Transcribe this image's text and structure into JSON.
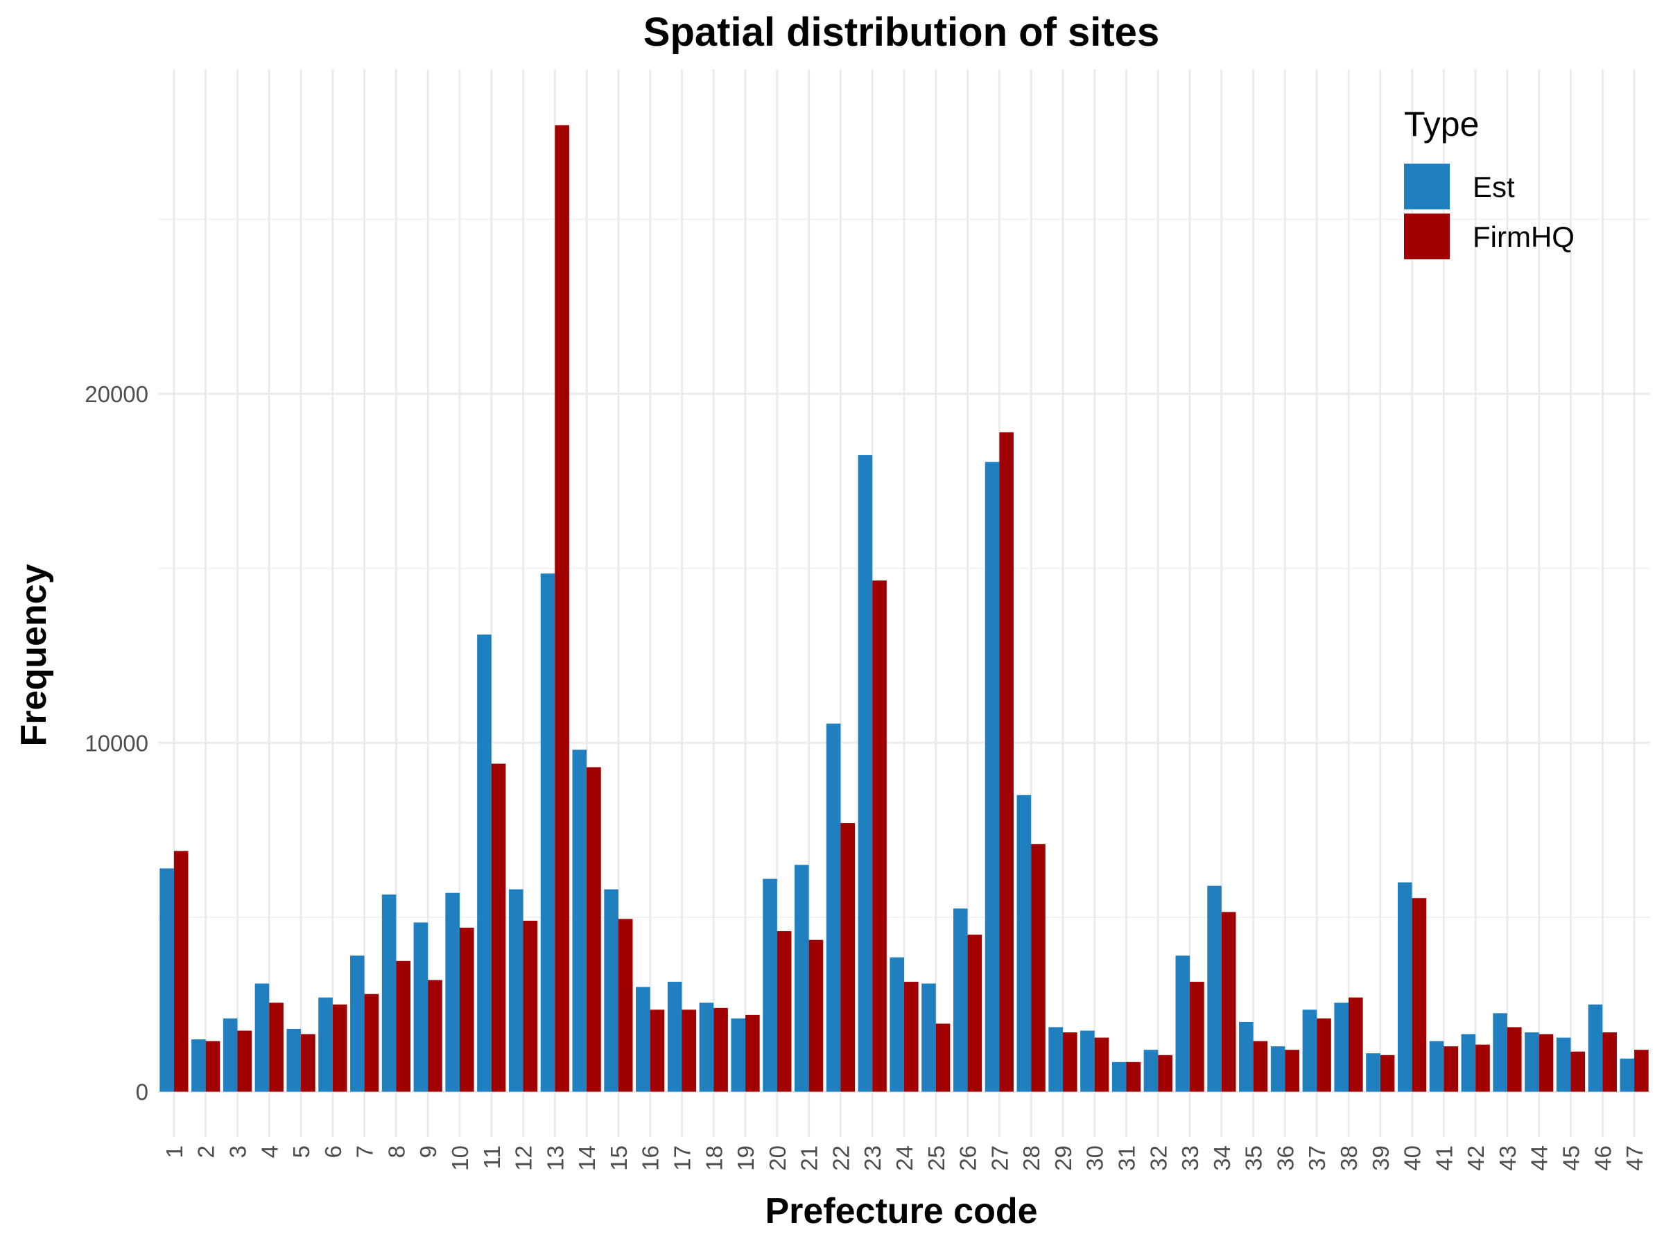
{
  "chart_data": {
    "type": "bar",
    "title": "Spatial distribution of sites",
    "xlabel": "Prefecture code",
    "ylabel": "Frequency",
    "categories": [
      "1",
      "2",
      "3",
      "4",
      "5",
      "6",
      "7",
      "8",
      "9",
      "10",
      "11",
      "12",
      "13",
      "14",
      "15",
      "16",
      "17",
      "18",
      "19",
      "20",
      "21",
      "22",
      "23",
      "24",
      "25",
      "26",
      "27",
      "28",
      "29",
      "30",
      "31",
      "32",
      "33",
      "34",
      "35",
      "36",
      "37",
      "38",
      "39",
      "40",
      "41",
      "42",
      "43",
      "44",
      "45",
      "46",
      "47"
    ],
    "series": [
      {
        "name": "Est",
        "color": "#1f7fbf",
        "values": [
          6400,
          1500,
          2100,
          3100,
          1800,
          2700,
          3900,
          5650,
          4850,
          5700,
          13100,
          5800,
          14850,
          9800,
          5800,
          3000,
          3150,
          2550,
          2100,
          6100,
          6500,
          10550,
          18250,
          3850,
          3100,
          5250,
          18050,
          8500,
          1850,
          1750,
          850,
          1200,
          3900,
          5900,
          2000,
          1300,
          2350,
          2550,
          1100,
          6000,
          1450,
          1650,
          2250,
          1700,
          1550,
          2500,
          950
        ]
      },
      {
        "name": "FirmHQ",
        "color": "#a00000",
        "values": [
          6900,
          1450,
          1750,
          2550,
          1650,
          2500,
          2800,
          3750,
          3200,
          4700,
          9400,
          4900,
          27700,
          9300,
          4950,
          2350,
          2350,
          2400,
          2200,
          4600,
          4350,
          7700,
          14650,
          3150,
          1950,
          4500,
          18900,
          7100,
          1700,
          1550,
          850,
          1050,
          3150,
          5150,
          1450,
          1200,
          2100,
          2700,
          1050,
          5550,
          1300,
          1350,
          1850,
          1650,
          1150,
          1700,
          1200
        ]
      }
    ],
    "yticks": [
      "0",
      "10000",
      "20000"
    ],
    "ylim": [
      -1300,
      29300
    ],
    "legend": {
      "title": "Type",
      "position": "top-right"
    },
    "grid": true
  }
}
